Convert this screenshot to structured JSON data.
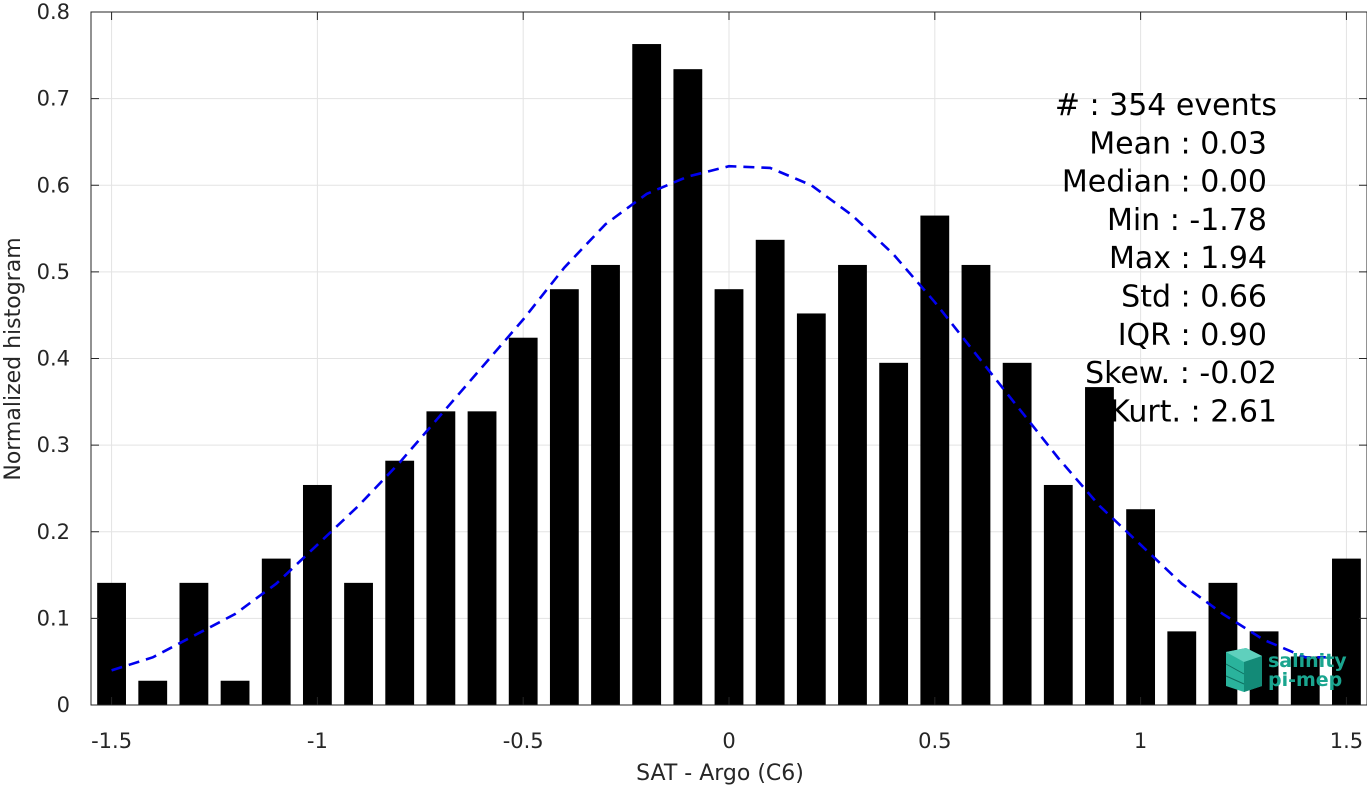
{
  "chart_data": {
    "type": "bar",
    "xlabel": "SAT - Argo (C6)",
    "ylabel": "Normalized histogram",
    "xlim": [
      -1.55,
      1.55
    ],
    "ylim": [
      0,
      0.8
    ],
    "xticks": [
      -1.5,
      -1,
      -0.5,
      0,
      0.5,
      1,
      1.5
    ],
    "xtick_labels": [
      "-1.5",
      "-1",
      "-0.5",
      "0",
      "0.5",
      "1",
      "1.5"
    ],
    "yticks": [
      0,
      0.1,
      0.2,
      0.3,
      0.4,
      0.5,
      0.6,
      0.7,
      0.8
    ],
    "ytick_labels": [
      "0",
      "0.1",
      "0.2",
      "0.3",
      "0.4",
      "0.5",
      "0.6",
      "0.7",
      "0.8"
    ],
    "grid": true,
    "bar_color": "#000000",
    "bar_width": 0.07,
    "x": [
      -1.5,
      -1.4,
      -1.3,
      -1.2,
      -1.1,
      -1.0,
      -0.9,
      -0.8,
      -0.7,
      -0.6,
      -0.5,
      -0.4,
      -0.3,
      -0.2,
      -0.1,
      0.0,
      0.1,
      0.2,
      0.3,
      0.4,
      0.5,
      0.6,
      0.7,
      0.8,
      0.9,
      1.0,
      1.1,
      1.2,
      1.3,
      1.4,
      1.5
    ],
    "values": [
      0.141,
      0.028,
      0.141,
      0.028,
      0.169,
      0.254,
      0.141,
      0.282,
      0.339,
      0.339,
      0.424,
      0.48,
      0.508,
      0.763,
      0.734,
      0.48,
      0.537,
      0.452,
      0.508,
      0.395,
      0.565,
      0.508,
      0.395,
      0.254,
      0.367,
      0.226,
      0.085,
      0.141,
      0.085,
      0.056,
      0.169
    ],
    "fit_curve": {
      "style": "dashed",
      "color": "#0000ee",
      "x": [
        -1.5,
        -1.4,
        -1.3,
        -1.2,
        -1.1,
        -1.0,
        -0.9,
        -0.8,
        -0.7,
        -0.6,
        -0.5,
        -0.4,
        -0.3,
        -0.2,
        -0.1,
        0.0,
        0.1,
        0.2,
        0.3,
        0.4,
        0.5,
        0.6,
        0.7,
        0.8,
        0.9,
        1.0,
        1.1,
        1.2,
        1.3,
        1.4,
        1.45
      ],
      "y": [
        0.04,
        0.055,
        0.08,
        0.105,
        0.14,
        0.185,
        0.23,
        0.28,
        0.335,
        0.39,
        0.445,
        0.505,
        0.555,
        0.59,
        0.61,
        0.622,
        0.62,
        0.6,
        0.565,
        0.52,
        0.465,
        0.405,
        0.345,
        0.285,
        0.23,
        0.185,
        0.14,
        0.105,
        0.075,
        0.055,
        0.055
      ]
    },
    "stats": [
      {
        "label": "#  ",
        "value": "354 events"
      },
      {
        "label": "Mean",
        "value": "0.03"
      },
      {
        "label": "Median",
        "value": "0.00"
      },
      {
        "label": "Min",
        "value": "-1.78"
      },
      {
        "label": "Max",
        "value": "1.94"
      },
      {
        "label": "Std",
        "value": "0.66"
      },
      {
        "label": "IQR",
        "value": "0.90"
      },
      {
        "label": "Skew.",
        "value": "-0.02"
      },
      {
        "label": "Kurt.",
        "value": "2.61"
      }
    ]
  },
  "logo": {
    "line1": "salinity",
    "line2": "pi-mep",
    "color": "#1aa58f"
  }
}
